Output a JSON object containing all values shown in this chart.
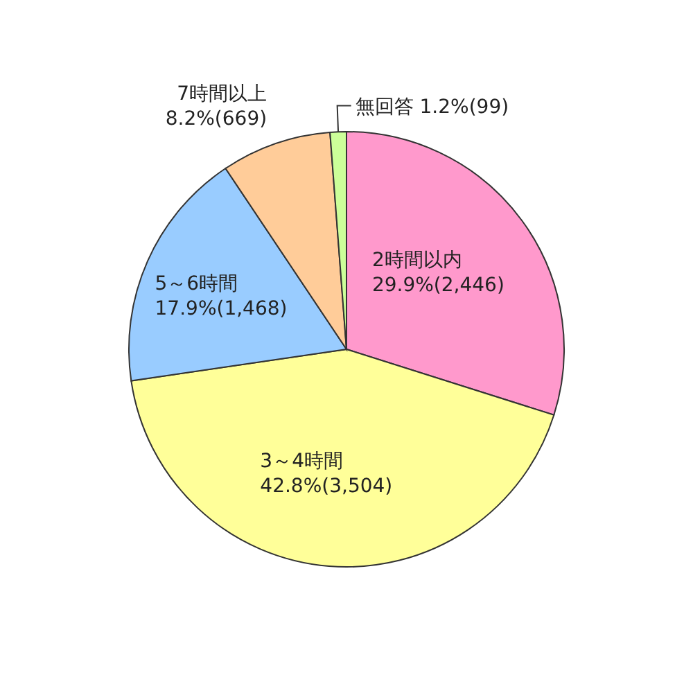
{
  "chart_data": {
    "type": "pie",
    "categories": [
      "2時間以内",
      "3～4時間",
      "5～6時間",
      "7時間以上",
      "無回答"
    ],
    "values": [
      2446,
      3504,
      1468,
      669,
      99
    ],
    "value_labels": [
      "29.9%(2,446)",
      "42.8%(3,504)",
      "17.9%(1,468)",
      "8.2%(669)",
      "1.2%(99)"
    ],
    "colors": [
      "#ff99cc",
      "#ffff99",
      "#99ccff",
      "#ffcc99",
      "#ccff99"
    ]
  }
}
